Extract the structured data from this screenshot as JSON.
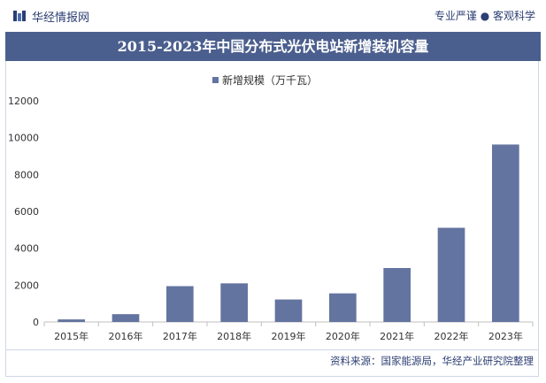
{
  "header": {
    "brand": "华经情报网",
    "slogan": "专业严谨 ● 客观科学"
  },
  "source_note": "资料来源：国家能源局，华经产业研究院整理",
  "colors": {
    "bar": "#6474a0",
    "title_bg": "#4b5f8e",
    "brand": "#2c3e73"
  },
  "chart_data": {
    "type": "bar",
    "title": "2015-2023年中国分布式光伏电站新增装机容量",
    "xlabel": "",
    "ylabel": "",
    "categories": [
      "2015年",
      "2016年",
      "2017年",
      "2018年",
      "2019年",
      "2020年",
      "2021年",
      "2022年",
      "2023年"
    ],
    "series": [
      {
        "name": "新增规模（万千瓦）",
        "values": [
          139,
          424,
          1944,
          2096,
          1220,
          1552,
          2928,
          5111,
          9629
        ]
      }
    ],
    "ylim": [
      0,
      12000
    ],
    "yticks": [
      0,
      2000,
      4000,
      6000,
      8000,
      10000,
      12000
    ],
    "grid": false,
    "legend_position": "top-center"
  }
}
